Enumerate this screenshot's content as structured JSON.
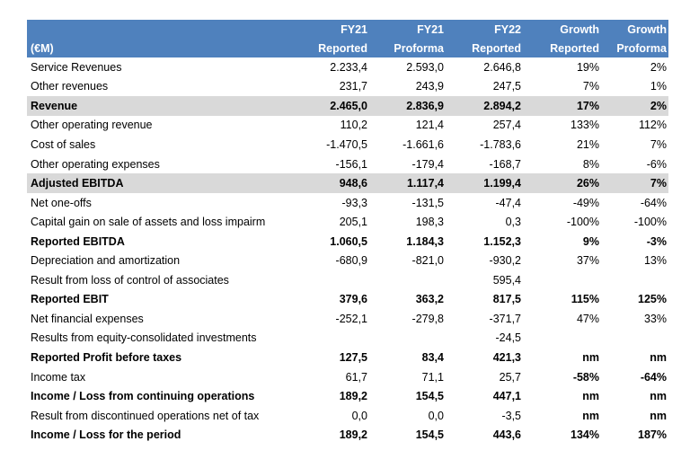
{
  "header": {
    "row1": [
      "FY21",
      "FY21",
      "FY22",
      "Growth",
      "Growth"
    ],
    "row2": [
      "(€M)",
      "Reported",
      "Proforma",
      "Reported",
      "Reported",
      "Proforma"
    ]
  },
  "table": {
    "rows": [
      [
        "Service Revenues",
        "2.233,4",
        "2.593,0",
        "2.646,8",
        "19%",
        "2%"
      ],
      [
        "Other revenues",
        "231,7",
        "243,9",
        "247,5",
        "7%",
        "1%"
      ],
      [
        "Revenue",
        "2.465,0",
        "2.836,9",
        "2.894,2",
        "17%",
        "2%"
      ],
      [
        "Other operating revenue",
        "110,2",
        "121,4",
        "257,4",
        "133%",
        "112%"
      ],
      [
        "Cost of sales",
        "-1.470,5",
        "-1.661,6",
        "-1.783,6",
        "21%",
        "7%"
      ],
      [
        "Other operating expenses",
        "-156,1",
        "-179,4",
        "-168,7",
        "8%",
        "-6%"
      ],
      [
        "Adjusted EBITDA",
        "948,6",
        "1.117,4",
        "1.199,4",
        "26%",
        "7%"
      ],
      [
        "Net one-offs",
        "-93,3",
        "-131,5",
        "-47,4",
        "-49%",
        "-64%"
      ],
      [
        "Capital gain on sale of assets and loss impairm",
        "205,1",
        "198,3",
        "0,3",
        "-100%",
        "-100%"
      ],
      [
        "Reported EBITDA",
        "1.060,5",
        "1.184,3",
        "1.152,3",
        "9%",
        "-3%"
      ],
      [
        "Depreciation and amortization",
        "-680,9",
        "-821,0",
        "-930,2",
        "37%",
        "13%"
      ],
      [
        "Result from loss of control of associates",
        null,
        null,
        "595,4",
        null,
        null
      ],
      [
        "Reported EBIT",
        "379,6",
        "363,2",
        "817,5",
        "115%",
        "125%"
      ],
      [
        "Net financial expenses",
        "-252,1",
        "-279,8",
        "-371,7",
        "47%",
        "33%"
      ],
      [
        "Results from equity-consolidated investments",
        null,
        null,
        "-24,5",
        null,
        null
      ],
      [
        "Reported Profit before taxes",
        "127,5",
        "83,4",
        "421,3",
        "nm",
        "nm"
      ],
      [
        "Income tax",
        "61,7",
        "71,1",
        "25,7",
        "-58%",
        "-64%"
      ],
      [
        "Income / Loss from continuing operations",
        "189,2",
        "154,5",
        "447,1",
        "nm",
        "nm"
      ],
      [
        "Result from discontinued operations net of tax",
        "0,0",
        "0,0",
        "-3,5",
        "nm",
        "nm"
      ],
      [
        "Income / Loss for the period",
        "189,2",
        "154,5",
        "443,6",
        "134%",
        "187%"
      ]
    ]
  }
}
